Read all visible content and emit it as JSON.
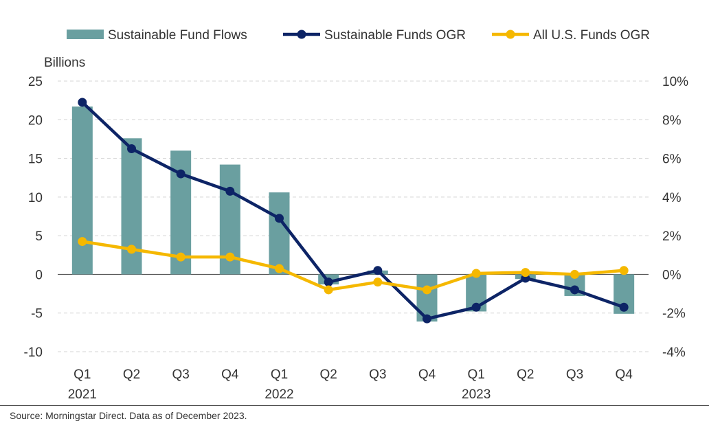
{
  "chart_data": {
    "type": "bar+line",
    "categories": [
      "Q1",
      "Q2",
      "Q3",
      "Q4",
      "Q1",
      "Q2",
      "Q3",
      "Q4",
      "Q1",
      "Q2",
      "Q3",
      "Q4"
    ],
    "year_labels": [
      {
        "index": 0,
        "label": "2021"
      },
      {
        "index": 4,
        "label": "2022"
      },
      {
        "index": 8,
        "label": "2023"
      }
    ],
    "ylabel_left": "Billions",
    "ylim_left": [
      -10,
      25
    ],
    "yticks_left": [
      "25",
      "20",
      "15",
      "10",
      "5",
      "0",
      "-5",
      "-10"
    ],
    "ylim_right": [
      -4,
      10
    ],
    "yticks_right": [
      "10%",
      "8%",
      "6%",
      "4%",
      "2%",
      "0%",
      "-2%",
      "-4%"
    ],
    "grid": true,
    "legend_position": "top",
    "series": [
      {
        "name": "Sustainable Fund Flows",
        "kind": "bar",
        "axis": "left",
        "color": "#6a9fa0",
        "values": [
          21.7,
          17.6,
          16.0,
          14.2,
          10.6,
          -1.3,
          0.5,
          -6.1,
          -4.8,
          -0.6,
          -2.8,
          -5.1
        ]
      },
      {
        "name": "Sustainable Funds OGR",
        "kind": "line",
        "axis": "right",
        "color": "#0d2466",
        "values": [
          8.9,
          6.5,
          5.2,
          4.3,
          2.9,
          -0.4,
          0.2,
          -2.3,
          -1.7,
          -0.2,
          -0.8,
          -1.7
        ]
      },
      {
        "name": "All U.S. Funds OGR",
        "kind": "line",
        "axis": "right",
        "color": "#f5b800",
        "values": [
          1.7,
          1.3,
          0.9,
          0.9,
          0.3,
          -0.8,
          -0.4,
          -0.8,
          0.05,
          0.1,
          0.0,
          0.2
        ]
      }
    ],
    "source": "Source: Morningstar Direct. Data as of December 2023."
  }
}
